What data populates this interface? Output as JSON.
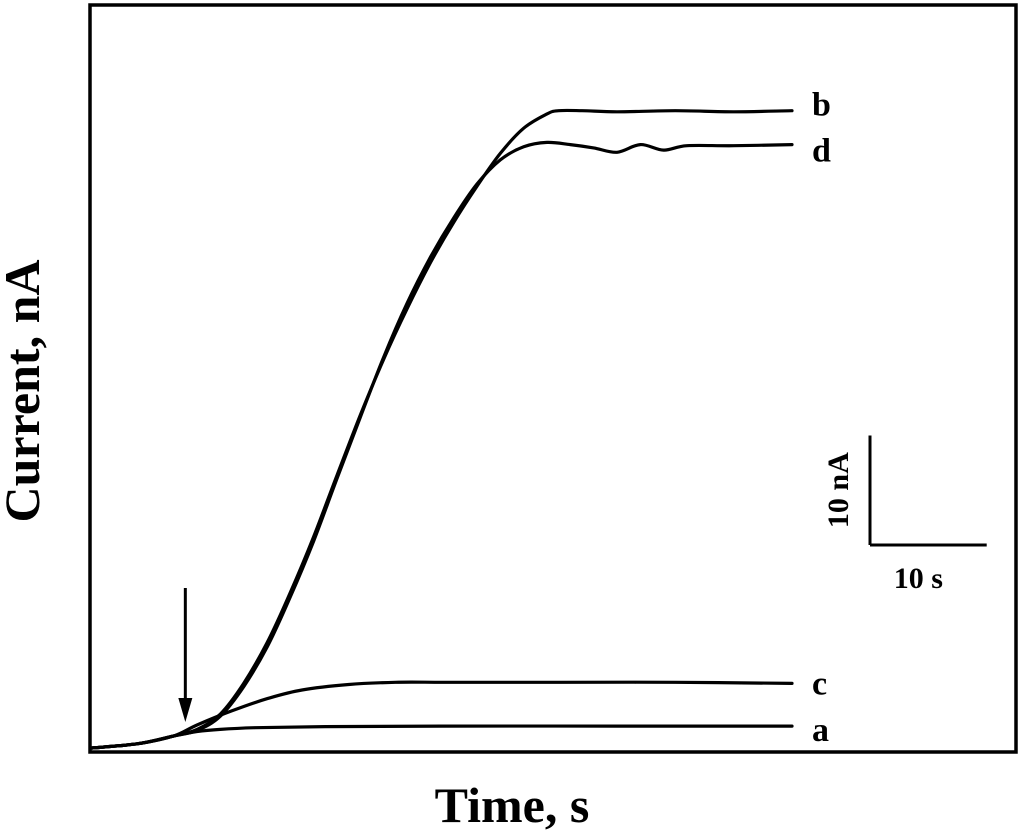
{
  "chart_data": {
    "type": "line",
    "xlabel": "Time, s",
    "ylabel": "Current, nA",
    "xlim": [
      0,
      60
    ],
    "ylim": [
      0,
      61
    ],
    "grid": false,
    "legend": "none",
    "line_color": "#000000",
    "injection_marker": {
      "x": 8,
      "symbol": "arrow-down"
    },
    "scale_bar": {
      "y_label": "10 nA",
      "y_value": 10,
      "x_label": "10 s",
      "x_value": 10
    },
    "series": [
      {
        "name": "a",
        "x": [
          0,
          4,
          7,
          9,
          11,
          14,
          20,
          30,
          45,
          60
        ],
        "y": [
          0,
          0.4,
          1.1,
          1.5,
          1.7,
          1.85,
          1.95,
          2.0,
          2.0,
          2.0
        ]
      },
      {
        "name": "b",
        "x": [
          0,
          4,
          7,
          9,
          11,
          13,
          15,
          17,
          19,
          21,
          23,
          25,
          27,
          29,
          31,
          33,
          35,
          37,
          39,
          40,
          42,
          45,
          50,
          55,
          60
        ],
        "y": [
          0,
          0.4,
          1.1,
          1.7,
          3.1,
          5.9,
          9.6,
          14.2,
          19.3,
          24.9,
          30.4,
          35.5,
          40.1,
          44.3,
          48.0,
          51.3,
          54.3,
          56.6,
          57.9,
          58.2,
          58.2,
          58.1,
          58.2,
          58.1,
          58.2
        ]
      },
      {
        "name": "c",
        "x": [
          0,
          4,
          7,
          9,
          12,
          15,
          18,
          22,
          26,
          30,
          35,
          40,
          50,
          60
        ],
        "y": [
          0,
          0.4,
          1.1,
          2.1,
          3.4,
          4.5,
          5.3,
          5.8,
          6.0,
          6.0,
          6.0,
          6.0,
          6.0,
          5.9
        ]
      },
      {
        "name": "d",
        "x": [
          0,
          4,
          7,
          9,
          11,
          13,
          15,
          17,
          19,
          21,
          23,
          25,
          27,
          29,
          31,
          33,
          35,
          37,
          39,
          41,
          43,
          45,
          47,
          49,
          51,
          55,
          60
        ],
        "y": [
          0,
          0.4,
          1.1,
          1.6,
          2.9,
          5.6,
          9.2,
          13.8,
          18.9,
          24.6,
          30.2,
          35.7,
          40.6,
          44.8,
          48.4,
          51.5,
          53.7,
          54.9,
          55.3,
          55.1,
          54.8,
          54.4,
          55.1,
          54.6,
          55.0,
          55.0,
          55.1
        ]
      }
    ]
  }
}
